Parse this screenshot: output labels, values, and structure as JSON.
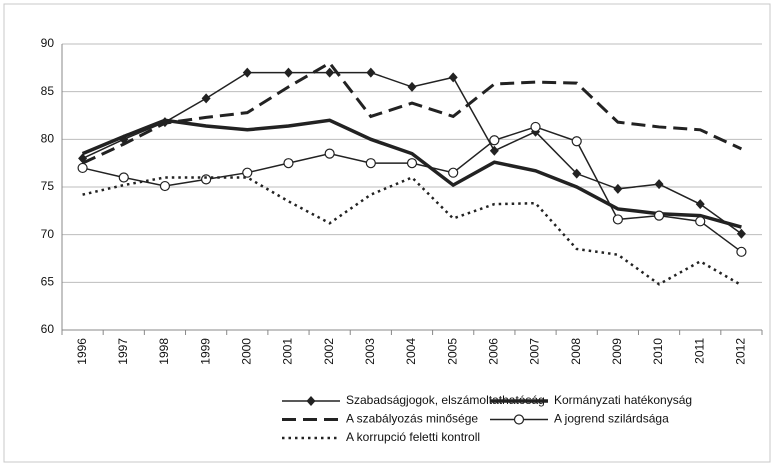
{
  "chart_data": {
    "type": "line",
    "categories": [
      "1996",
      "1997",
      "1998",
      "1999",
      "2000",
      "2001",
      "2002",
      "2003",
      "2004",
      "2005",
      "2006",
      "2007",
      "2008",
      "2009",
      "2010",
      "2011",
      "2012"
    ],
    "series": [
      {
        "name": "Szabadságjogok, elszámoltathatóság",
        "color": "#222222",
        "dash": "solid",
        "width": 1.5,
        "marker": "diamond",
        "values": [
          78,
          80,
          81.8,
          84.3,
          87,
          87,
          87,
          87,
          85.5,
          86.5,
          78.8,
          80.8,
          76.4,
          74.8,
          75.3,
          73.2,
          70.1
        ]
      },
      {
        "name": "Kormányzati hatékonyság",
        "color": "#222222",
        "dash": "solid",
        "width": 3.5,
        "marker": "none",
        "values": [
          78.5,
          80.3,
          82,
          81.4,
          81,
          81.4,
          82,
          80,
          78.5,
          75.2,
          77.6,
          76.7,
          75,
          72.7,
          72.2,
          72,
          70.8
        ]
      },
      {
        "name": "A szabályozás minősége",
        "color": "#222222",
        "dash": "dashed",
        "width": 3,
        "marker": "none",
        "values": [
          77.5,
          79.5,
          81.7,
          82.3,
          82.8,
          85.5,
          88,
          82.4,
          83.8,
          82.4,
          85.8,
          86,
          85.9,
          81.8,
          81.3,
          81,
          79
        ]
      },
      {
        "name": "A jogrend szilárdsága",
        "color": "#222222",
        "dash": "solid",
        "width": 1.5,
        "marker": "circle",
        "values": [
          77,
          76,
          75.1,
          75.8,
          76.5,
          77.5,
          78.5,
          77.5,
          77.5,
          76.5,
          79.9,
          81.3,
          79.8,
          71.6,
          72,
          71.4,
          68.2
        ]
      },
      {
        "name": "A korrupció feletti kontroll",
        "color": "#222222",
        "dash": "dotted",
        "width": 2.5,
        "marker": "none",
        "values": [
          74.2,
          75.2,
          76,
          76,
          76,
          73.5,
          71.2,
          74.2,
          76,
          71.7,
          73.2,
          73.3,
          68.5,
          67.9,
          64.8,
          67.2,
          64.7
        ]
      }
    ],
    "ylim": [
      60,
      90
    ],
    "yticks": [
      60,
      65,
      70,
      75,
      80,
      85,
      90
    ],
    "grid": true,
    "legend": "bottom"
  }
}
